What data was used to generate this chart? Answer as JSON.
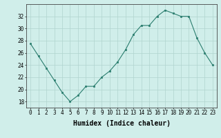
{
  "x": [
    0,
    1,
    2,
    3,
    4,
    5,
    6,
    7,
    8,
    9,
    10,
    11,
    12,
    13,
    14,
    15,
    16,
    17,
    18,
    19,
    20,
    21,
    22,
    23
  ],
  "y": [
    27.5,
    25.5,
    23.5,
    21.5,
    19.5,
    18.0,
    19.0,
    20.5,
    20.5,
    22.0,
    23.0,
    24.5,
    26.5,
    29.0,
    30.5,
    30.5,
    32.0,
    33.0,
    32.5,
    32.0,
    32.0,
    28.5,
    26.0,
    24.0
  ],
  "line_color": "#2a7d6e",
  "marker_color": "#2a7d6e",
  "bg_color": "#d0eeea",
  "grid_color": "#b0d4ce",
  "xlabel": "Humidex (Indice chaleur)",
  "ylim": [
    17,
    34
  ],
  "yticks": [
    18,
    20,
    22,
    24,
    26,
    28,
    30,
    32
  ],
  "xticks": [
    0,
    1,
    2,
    3,
    4,
    5,
    6,
    7,
    8,
    9,
    10,
    11,
    12,
    13,
    14,
    15,
    16,
    17,
    18,
    19,
    20,
    21,
    22,
    23
  ],
  "tick_fontsize": 5.5,
  "label_fontsize": 7.0
}
